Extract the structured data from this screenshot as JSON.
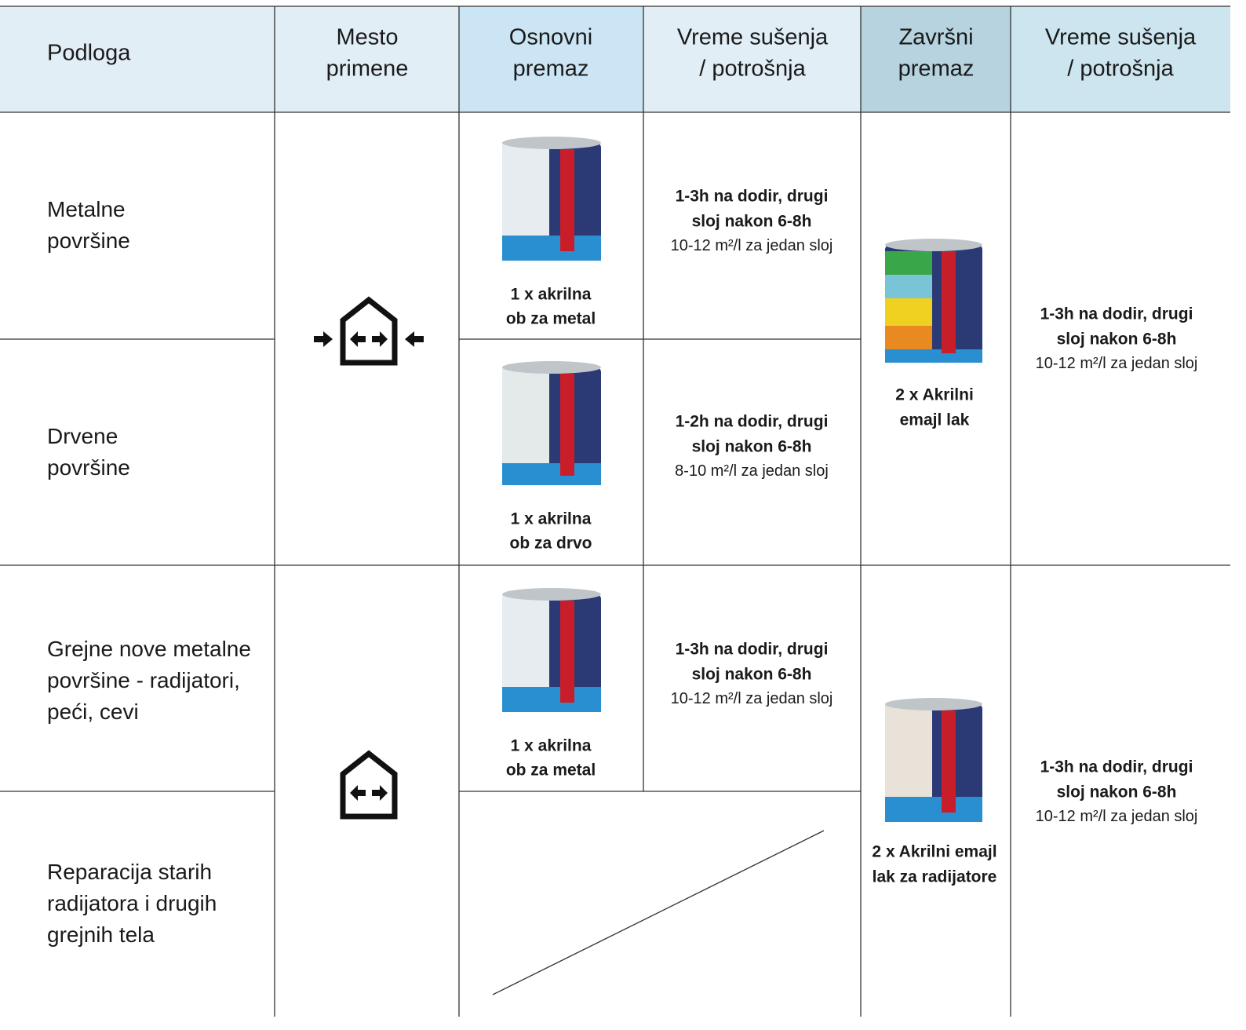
{
  "header": [
    [
      "Podloga"
    ],
    [
      "Mesto",
      "primene"
    ],
    [
      "Osnovni",
      "premaz"
    ],
    [
      "Vreme sušenja",
      "/ potrošnja"
    ],
    [
      "Završni",
      "premaz"
    ],
    [
      "Vreme sušenja",
      "/ potrošnja"
    ]
  ],
  "substrates": [
    [
      "Metalne",
      "površine"
    ],
    [
      "Drvene",
      "površine"
    ],
    [
      "Grejne nove metalne",
      "površine - radijatori,",
      "peći, cevi"
    ],
    [
      "Reparacija starih",
      "radijatora i drugih",
      "grejnih tela"
    ]
  ],
  "primers": [
    {
      "label": [
        "1 x akrilna",
        "ob za metal"
      ],
      "drying": [
        "1-3h na dodir, drugi",
        "sloj nakon 6-8h"
      ],
      "coverage": "10-12 m²/l za jedan sloj"
    },
    {
      "label": [
        "1 x akrilna",
        "ob za drvo"
      ],
      "drying": [
        "1-2h na dodir, drugi",
        "sloj nakon 6-8h"
      ],
      "coverage": "8-10 m²/l za jedan sloj"
    },
    {
      "label": [
        "1 x akrilna",
        "ob za metal"
      ],
      "drying": [
        "1-3h na dodir, drugi",
        "sloj nakon 6-8h"
      ],
      "coverage": "10-12 m²/l za jedan sloj"
    }
  ],
  "finishes": [
    {
      "label": [
        "2 x Akrilni",
        "emajl lak"
      ],
      "drying": [
        "1-3h na dodir, drugi",
        "sloj nakon 6-8h"
      ],
      "coverage": "10-12 m²/l za jedan sloj"
    },
    {
      "label": [
        "2 x Akrilni emajl",
        "lak za radijatore"
      ],
      "drying": [
        "1-3h na dodir, drugi",
        "sloj nakon 6-8h"
      ],
      "coverage": "10-12 m²/l za jedan sloj"
    }
  ]
}
